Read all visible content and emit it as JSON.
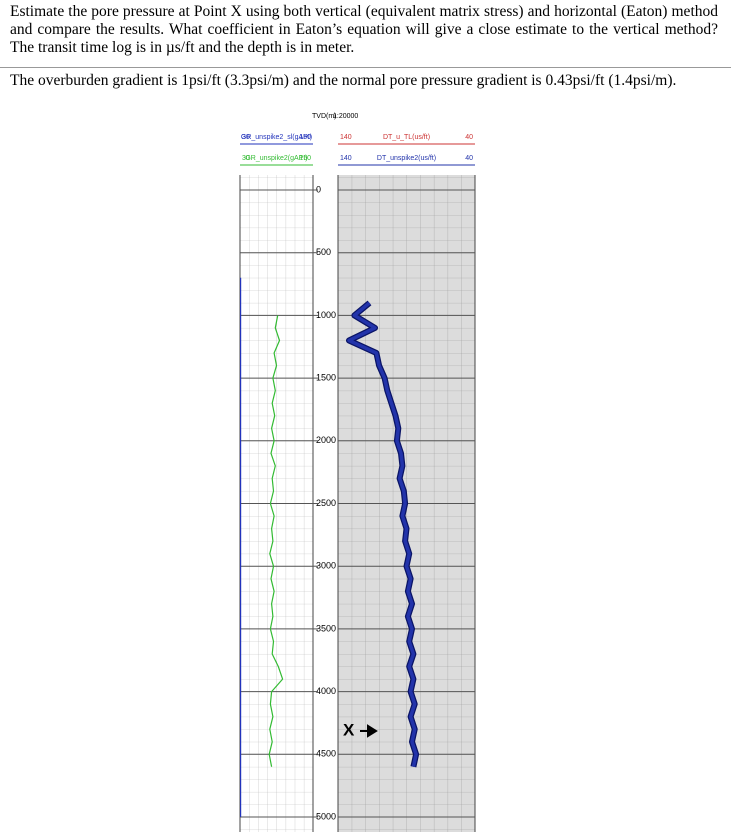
{
  "question": {
    "paragraph1": "Estimate the pore pressure at Point X using both vertical (equivalent matrix stress) and horizontal (Eaton) method and compare the results. What coefficient in Eaton’s equation will give a close estimate to the vertical method? The transit time log is in µs/ft and the depth is in meter.",
    "paragraph2": "The overburden gradient is 1psi/ft (3.3psi/m) and the normal pore pressure gradient is 0.43psi/ft (1.4psi/m)."
  },
  "chart_data": {
    "type": "well-log",
    "depth_label": "TVD(m)",
    "scale_label": "1:20000",
    "ylim": [
      0,
      5000
    ],
    "yticks": [
      0,
      500,
      1000,
      1500,
      2000,
      2500,
      3000,
      3500,
      4000,
      4500,
      5000
    ],
    "grid": true,
    "tracks": [
      {
        "series": [
          {
            "name": "GR_unspike2_sl(gAPI)",
            "color": "#2233bb",
            "xlim": [
              30,
              150
            ],
            "depths": [
              700,
              5000
            ],
            "values": [
              31,
              31
            ]
          },
          {
            "name": "GR_unspike2(gAPI)",
            "color": "#33bb33",
            "xlim": [
              30,
              150
            ],
            "depths": [
              1000,
              1100,
              1200,
              1300,
              1400,
              1500,
              1600,
              1700,
              1800,
              1900,
              2000,
              2100,
              2200,
              2300,
              2400,
              2500,
              2600,
              2700,
              2800,
              2900,
              3000,
              3100,
              3200,
              3300,
              3400,
              3500,
              3600,
              3700,
              3800,
              3900,
              4000,
              4100,
              4200,
              4300,
              4400,
              4500,
              4600
            ],
            "values": [
              92,
              88,
              95,
              86,
              90,
              84,
              88,
              83,
              87,
              82,
              86,
              81,
              88,
              83,
              85,
              80,
              86,
              82,
              84,
              79,
              85,
              81,
              86,
              82,
              84,
              80,
              85,
              83,
              93,
              100,
              82,
              80,
              84,
              79,
              83,
              78,
              82
            ]
          }
        ]
      },
      {
        "series": [
          {
            "name": "DT_u_TL(us/ft)",
            "color": "#cc3333",
            "xlim": [
              140,
              40
            ]
          },
          {
            "name": "DT_unspike2(us/ft)",
            "color": "#2233aa",
            "xlim": [
              140,
              40
            ],
            "depths": [
              900,
              1000,
              1100,
              1200,
              1300,
              1400,
              1500,
              1600,
              1700,
              1800,
              1900,
              2000,
              2100,
              2200,
              2300,
              2400,
              2500,
              2600,
              2700,
              2800,
              2900,
              3000,
              3100,
              3200,
              3300,
              3400,
              3500,
              3600,
              3700,
              3800,
              3900,
              4000,
              4100,
              4200,
              4300,
              4400,
              4500,
              4600
            ],
            "values": [
              117,
              128,
              113,
              132,
              112,
              110,
              106,
              104,
              101,
              98,
              96,
              97,
              94,
              93,
              95,
              92,
              91,
              93,
              90,
              91,
              88,
              90,
              87,
              89,
              86,
              89,
              86,
              88,
              85,
              88,
              85,
              87,
              84,
              87,
              84,
              86,
              83,
              85
            ]
          }
        ]
      }
    ],
    "annotation": {
      "text": "X",
      "depth": 4314
    }
  }
}
